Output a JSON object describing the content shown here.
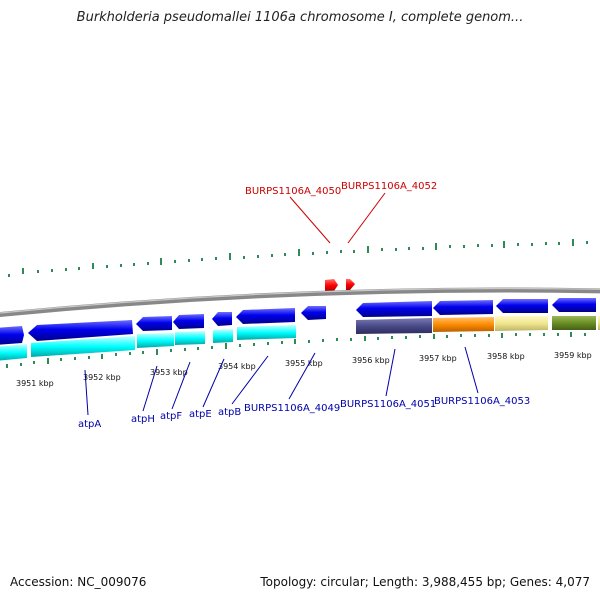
{
  "title": "Burkholderia pseudomallei 1106a chromosome I, complete genom...",
  "footer": {
    "accession": "Accession: NC_009076",
    "summary": "Topology: circular; Length: 3,988,455 bp; Genes: 4,077"
  },
  "colors": {
    "backbone": "#888888",
    "gene_forward": "#0000ee",
    "gene_reverse": "#0000ee",
    "cds_cyan": "#00ffff",
    "feature_purple": "#4a4a8a",
    "feature_orange": "#ff8c00",
    "feature_khaki": "#f0e68c",
    "feature_olive": "#6b8e23",
    "gc_ticks": "#2e8b57",
    "red_gene": "#ff0000",
    "label_red": "#cc0000",
    "label_blue": "#0000aa"
  },
  "kbp_ticks": [
    "3951 kbp",
    "3952 kbp",
    "3953 kbp",
    "3954 kbp",
    "3955 kbp",
    "3956 kbp",
    "3957 kbp",
    "3958 kbp",
    "3959 kbp"
  ],
  "red_labels": [
    "BURPS1106A_4050",
    "BURPS1106A_4052"
  ],
  "blue_labels": [
    "atpA",
    "atpH",
    "atpF",
    "atpE",
    "atpB",
    "BURPS1106A_4049",
    "BURPS1106A_4051",
    "BURPS1106A_4053"
  ]
}
